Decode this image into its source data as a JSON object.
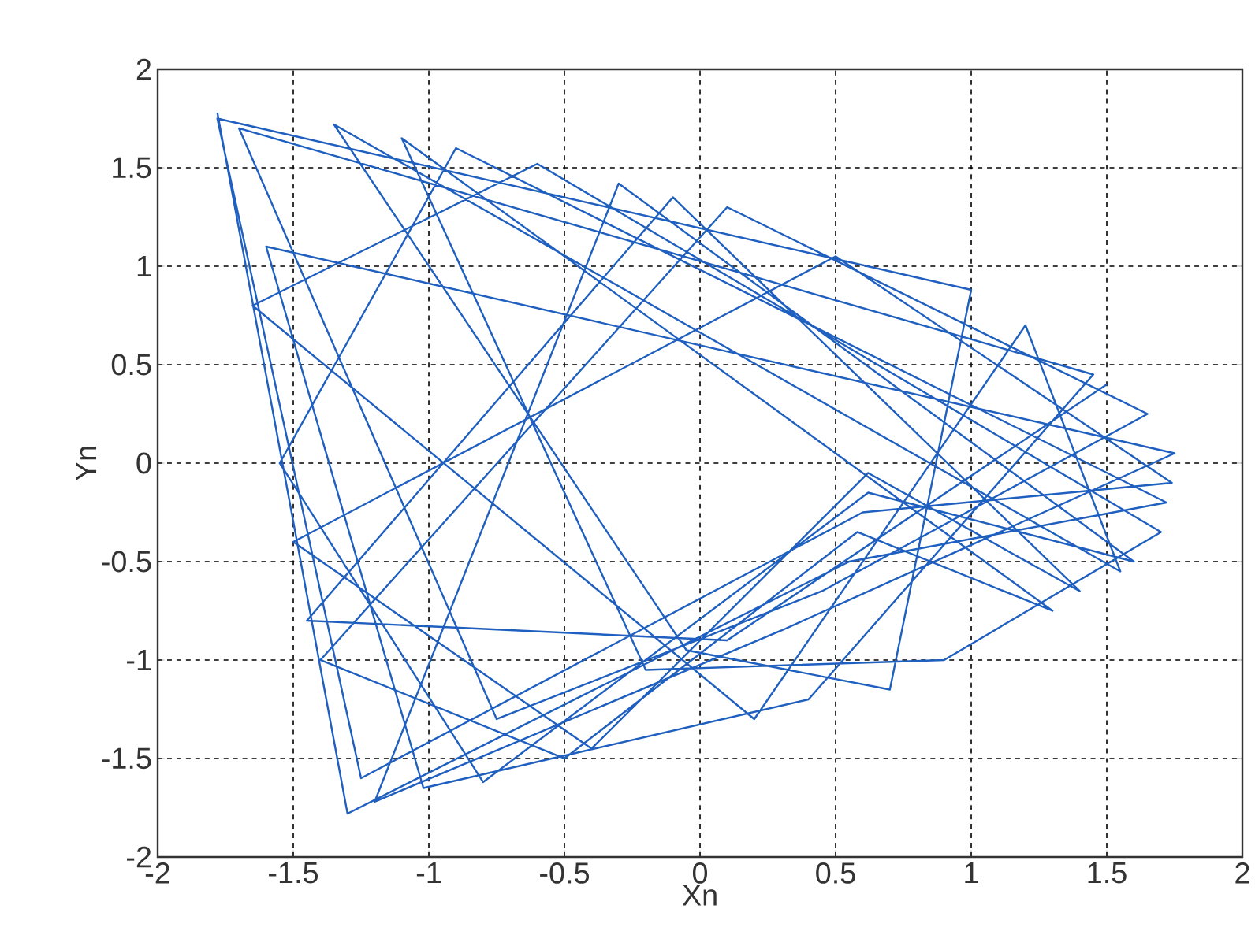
{
  "chart_data": {
    "type": "line",
    "xlabel": "Xn",
    "ylabel": "Yn",
    "xlim": [
      -2,
      2
    ],
    "ylim": [
      -2,
      2
    ],
    "xticks": [
      -2,
      -1.5,
      -1,
      -0.5,
      0,
      0.5,
      1,
      1.5,
      2
    ],
    "yticks": [
      -2,
      -1.5,
      -1,
      -0.5,
      0,
      0.5,
      1,
      1.5,
      2
    ],
    "grid": true,
    "series": [
      {
        "color": "#1f5fbf",
        "x": [
          -1.78,
          -1.3,
          0.55,
          1.72,
          -0.9,
          -1.55,
          -0.8,
          0.62,
          1.6,
          -0.3,
          -1.2,
          0.3,
          1.75,
          -1.6,
          -1.02,
          0.4,
          1.45,
          -1.7,
          -0.75,
          0.45,
          1.65,
          0.1,
          -1.4,
          -0.5,
          0.58,
          1.3,
          -1.1,
          -0.2,
          0.9,
          1.7,
          -0.6,
          -1.65,
          0.2,
          1.2,
          1.55,
          -1.35,
          -0.05,
          0.7,
          1.0,
          -1.78,
          -1.25,
          0.6,
          1.74,
          0.5,
          -1.5,
          -0.4,
          0.62,
          1.4,
          -0.1,
          -1.45,
          0.1,
          1.5
        ],
        "values": [
          1.78,
          -1.78,
          -0.5,
          -0.2,
          1.6,
          0.0,
          -1.62,
          -0.15,
          -0.5,
          1.42,
          -1.72,
          -0.85,
          0.05,
          1.1,
          -1.65,
          -1.2,
          0.45,
          1.7,
          -1.3,
          -0.65,
          0.25,
          1.3,
          -1.0,
          -1.5,
          -0.35,
          -0.75,
          1.65,
          -1.05,
          -1.0,
          -0.35,
          1.52,
          0.8,
          -1.3,
          0.7,
          -0.55,
          1.72,
          -0.95,
          -1.15,
          0.88,
          1.75,
          -1.6,
          -0.25,
          -0.1,
          1.05,
          -0.4,
          -1.45,
          -0.05,
          -0.65,
          1.35,
          -0.8,
          -0.9,
          0.4
        ]
      }
    ]
  }
}
